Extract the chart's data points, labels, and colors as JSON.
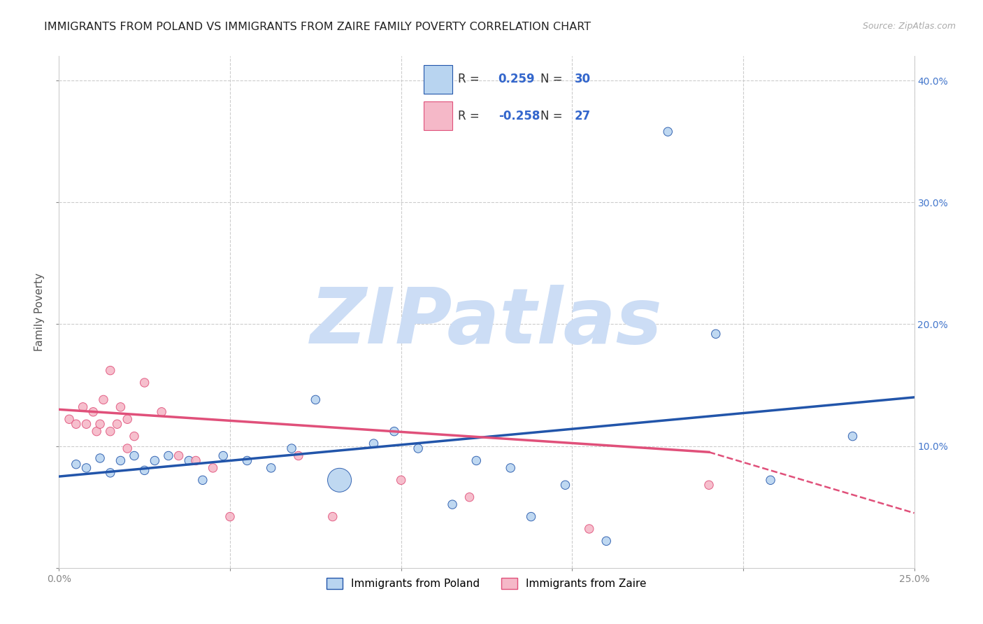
{
  "title": "IMMIGRANTS FROM POLAND VS IMMIGRANTS FROM ZAIRE FAMILY POVERTY CORRELATION CHART",
  "source": "Source: ZipAtlas.com",
  "ylabel": "Family Poverty",
  "xlim": [
    0.0,
    0.25
  ],
  "ylim": [
    0.0,
    0.42
  ],
  "poland_R": 0.259,
  "poland_N": 30,
  "zaire_R": -0.258,
  "zaire_N": 27,
  "poland_color": "#b8d4f0",
  "poland_line_color": "#2255aa",
  "zaire_color": "#f5b8c8",
  "zaire_line_color": "#e0507a",
  "poland_x": [
    0.005,
    0.008,
    0.012,
    0.015,
    0.018,
    0.022,
    0.025,
    0.028,
    0.032,
    0.038,
    0.042,
    0.048,
    0.055,
    0.062,
    0.068,
    0.075,
    0.082,
    0.092,
    0.098,
    0.105,
    0.115,
    0.122,
    0.132,
    0.138,
    0.148,
    0.16,
    0.178,
    0.192,
    0.208,
    0.232
  ],
  "poland_y": [
    0.085,
    0.082,
    0.09,
    0.078,
    0.088,
    0.092,
    0.08,
    0.088,
    0.092,
    0.088,
    0.072,
    0.092,
    0.088,
    0.082,
    0.098,
    0.138,
    0.072,
    0.102,
    0.112,
    0.098,
    0.052,
    0.088,
    0.082,
    0.042,
    0.068,
    0.022,
    0.358,
    0.192,
    0.072,
    0.108
  ],
  "poland_sizes": [
    80,
    80,
    80,
    80,
    80,
    80,
    80,
    80,
    80,
    80,
    80,
    80,
    80,
    80,
    80,
    80,
    600,
    80,
    80,
    80,
    80,
    80,
    80,
    80,
    80,
    80,
    80,
    80,
    80,
    80
  ],
  "zaire_x": [
    0.003,
    0.005,
    0.007,
    0.008,
    0.01,
    0.011,
    0.012,
    0.013,
    0.015,
    0.015,
    0.017,
    0.018,
    0.02,
    0.02,
    0.022,
    0.025,
    0.03,
    0.035,
    0.04,
    0.045,
    0.05,
    0.07,
    0.08,
    0.1,
    0.12,
    0.155,
    0.19
  ],
  "zaire_y": [
    0.122,
    0.118,
    0.132,
    0.118,
    0.128,
    0.112,
    0.118,
    0.138,
    0.162,
    0.112,
    0.118,
    0.132,
    0.122,
    0.098,
    0.108,
    0.152,
    0.128,
    0.092,
    0.088,
    0.082,
    0.042,
    0.092,
    0.042,
    0.072,
    0.058,
    0.032,
    0.068
  ],
  "zaire_sizes": [
    80,
    80,
    80,
    80,
    80,
    80,
    80,
    80,
    80,
    80,
    80,
    80,
    80,
    80,
    80,
    80,
    80,
    80,
    80,
    80,
    80,
    80,
    80,
    80,
    80,
    80,
    80
  ],
  "watermark": "ZIPatlas",
  "watermark_color": "#ccddf5",
  "grid_color": "#cccccc",
  "background_color": "#ffffff",
  "blue_text_color": "#3366cc",
  "black_text_color": "#222222",
  "right_tick_color": "#4477cc"
}
